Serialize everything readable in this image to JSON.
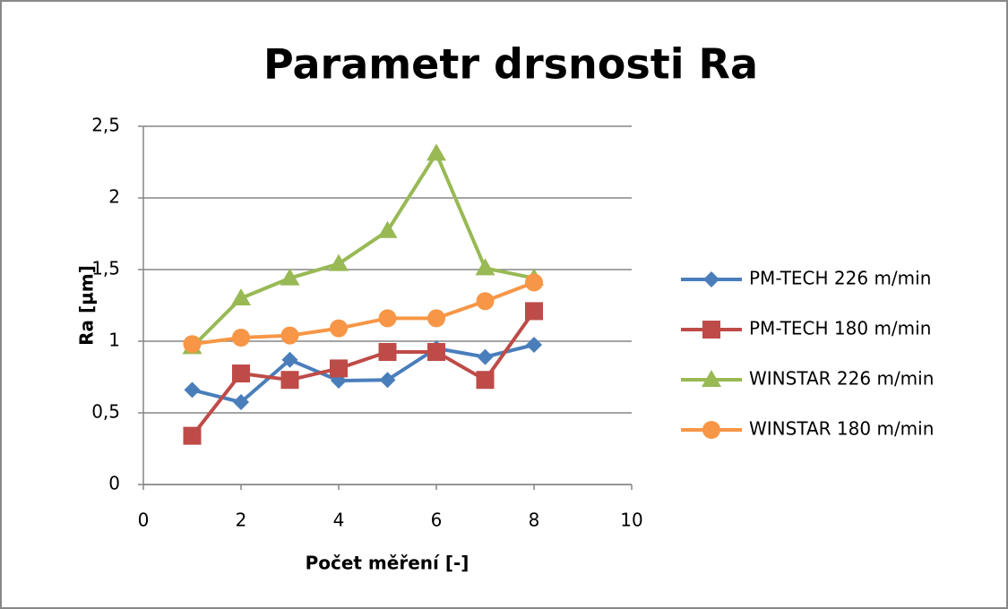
{
  "chart_data": {
    "type": "line",
    "title": "Parametr drsnosti Ra",
    "x_label": "Počet měření  [-]",
    "y_label": "Ra [µm]",
    "x": [
      1,
      2,
      3,
      4,
      5,
      6,
      7,
      8
    ],
    "series": [
      {
        "name": "PM-TECH 226 m/min",
        "color": "#4a7ebb",
        "marker": "diamond",
        "values": [
          0.66,
          0.575,
          0.87,
          0.725,
          0.73,
          0.95,
          0.89,
          0.975
        ]
      },
      {
        "name": "PM-TECH 180 m/min",
        "color": "#be4b48",
        "marker": "square",
        "values": [
          0.34,
          0.775,
          0.73,
          0.81,
          0.925,
          0.925,
          0.73,
          1.21
        ]
      },
      {
        "name": "WINSTAR 226 m/min",
        "color": "#98b954",
        "marker": "triangle",
        "values": [
          0.96,
          1.3,
          1.44,
          1.54,
          1.77,
          2.31,
          1.51,
          1.44
        ]
      },
      {
        "name": "WINSTAR 180 m/min",
        "color": "#f79646",
        "marker": "circle",
        "values": [
          0.98,
          1.025,
          1.04,
          1.09,
          1.16,
          1.16,
          1.28,
          1.41
        ]
      }
    ],
    "xlim": [
      0,
      10
    ],
    "xticks": [
      0,
      2,
      4,
      6,
      8,
      10
    ],
    "ylim": [
      0,
      2.5
    ],
    "yticks": [
      0,
      {
        "value": 0.5,
        "label": "0,5"
      },
      1,
      {
        "value": 1.5,
        "label": "1,5"
      },
      2,
      {
        "value": 2.5,
        "label": "2,5"
      }
    ],
    "grid": true,
    "legend": "right"
  }
}
